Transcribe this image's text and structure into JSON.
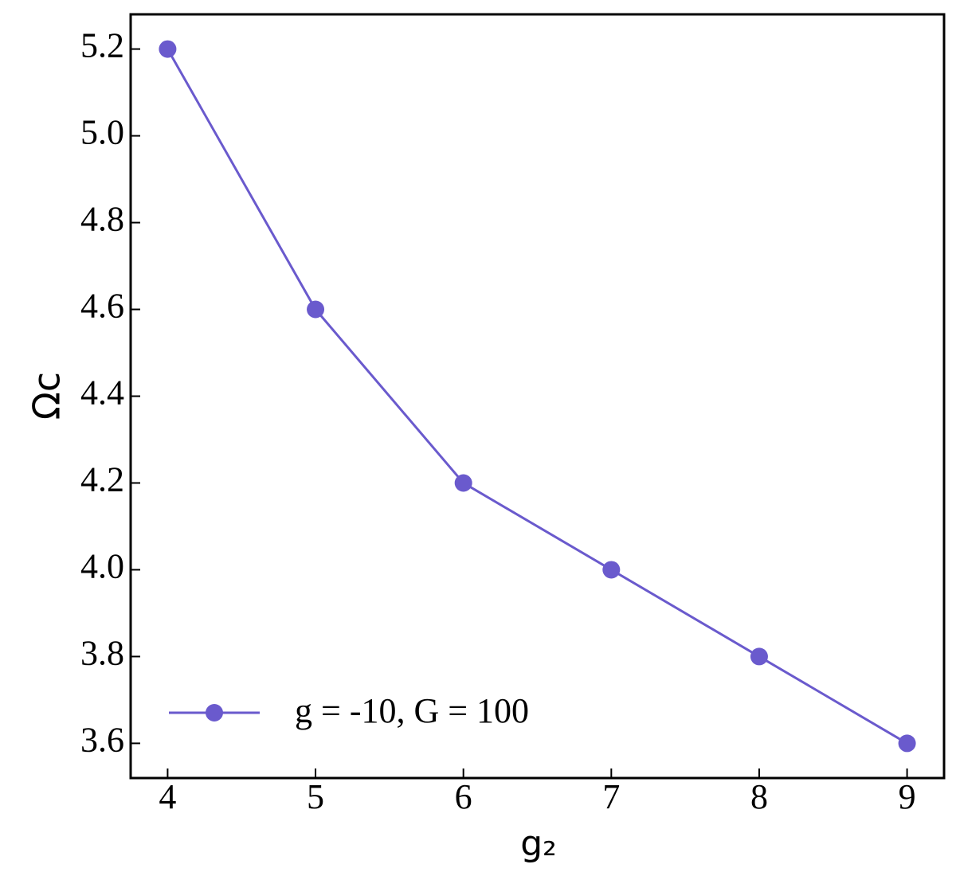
{
  "chart_data": {
    "type": "line",
    "xlabel": "g₂",
    "ylabel": "Ωc",
    "x": [
      4,
      5,
      6,
      7,
      8,
      9
    ],
    "series": [
      {
        "name": "g = -10, G = 100",
        "color": "#6a5acd",
        "values": [
          5.2,
          4.6,
          4.2,
          4.0,
          3.8,
          3.6
        ]
      }
    ],
    "xlim": [
      3.75,
      9.25
    ],
    "ylim": [
      3.52,
      5.28
    ],
    "xticks": [
      4,
      5,
      6,
      7,
      8,
      9
    ],
    "yticks": [
      3.6,
      3.8,
      {
        "value": 4.0,
        "label": "4.0"
      },
      4.2,
      4.4,
      4.6,
      4.8,
      {
        "value": 5.0,
        "label": "5.0"
      },
      5.2
    ],
    "grid": false,
    "legend": "lower left",
    "markers": true
  }
}
